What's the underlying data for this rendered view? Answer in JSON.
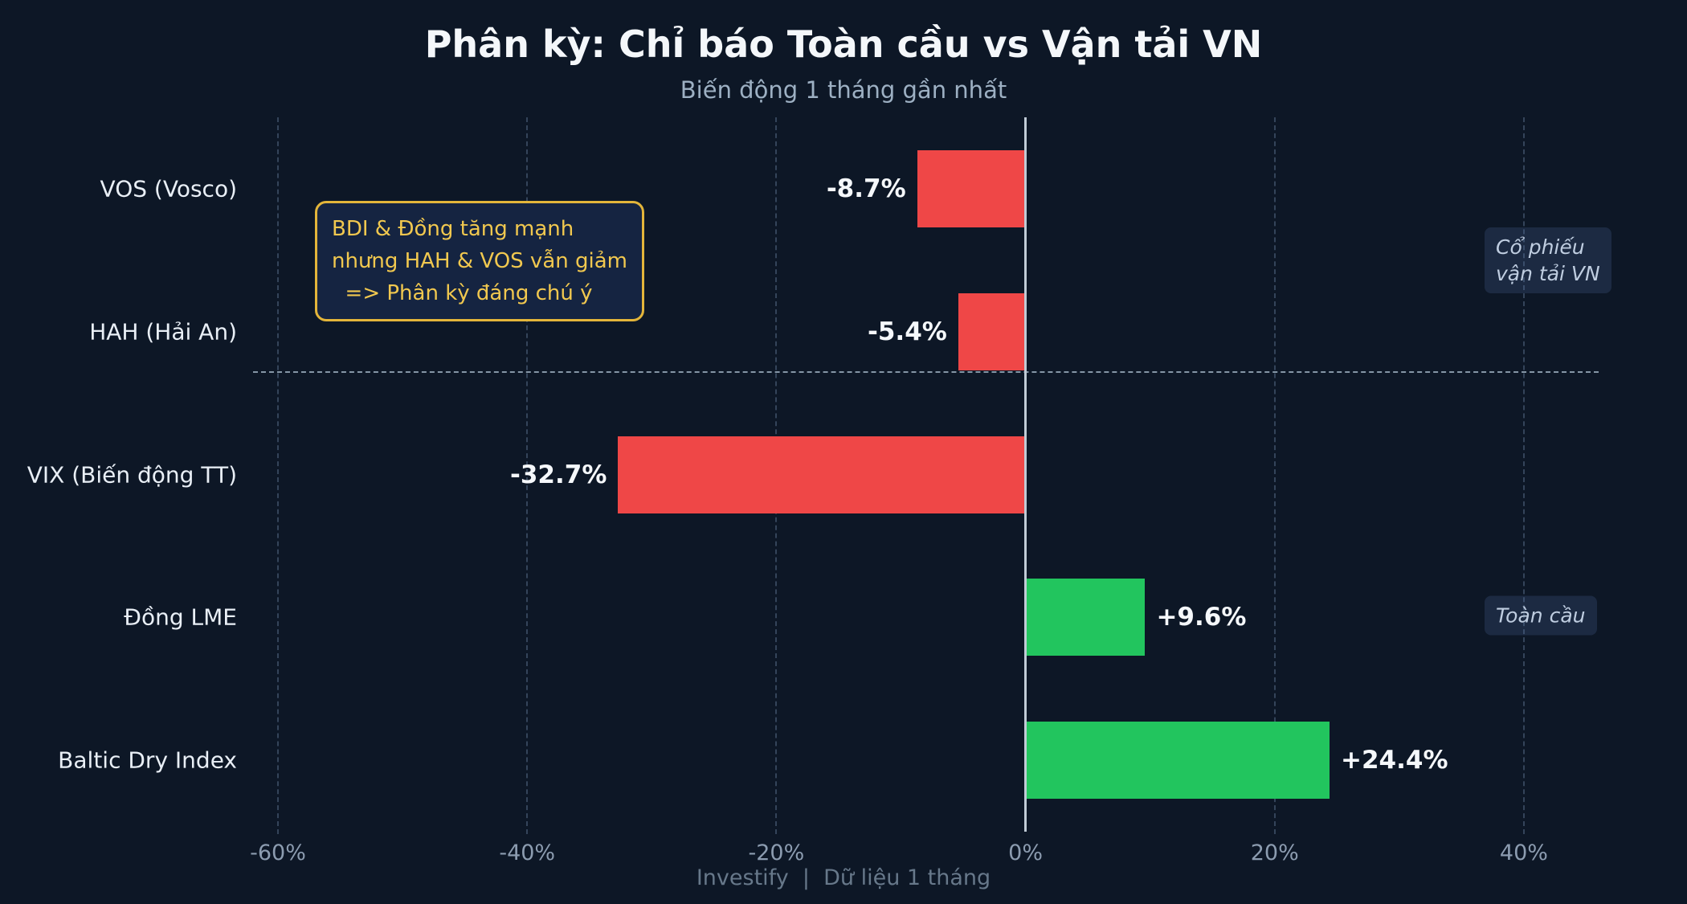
{
  "chart_data": {
    "type": "bar",
    "orientation": "horizontal",
    "title": "Phân kỳ: Chỉ báo Toàn cầu vs Vận tải VN",
    "subtitle": "Biến động 1 tháng gần nhất",
    "categories": [
      "VOS (Vosco)",
      "HAH (Hải An)",
      "VIX (Biến động TT)",
      "Đồng LME",
      "Baltic Dry Index"
    ],
    "values": [
      -8.7,
      -5.4,
      -32.7,
      9.6,
      24.4
    ],
    "value_labels": [
      "-8.7%",
      "-5.4%",
      "-32.7%",
      "+9.6%",
      "+24.4%"
    ],
    "xlim": [
      -62,
      46
    ],
    "xticks": [
      -60,
      -40,
      -20,
      0,
      20,
      40
    ],
    "xtick_labels": [
      "-60%",
      "-40%",
      "-20%",
      "0%",
      "20%",
      "40%"
    ],
    "negative_color": "#ef4747",
    "positive_color": "#22c55e",
    "grid": "vertical-dashed",
    "separator_between": [
      "HAH (Hải An)",
      "VIX (Biến động TT)"
    ]
  },
  "annotation": {
    "lines": [
      "BDI & Đồng tăng mạnh",
      "nhưng HAH & VOS vẫn giảm",
      "  => Phân kỳ đáng chú ý"
    ]
  },
  "group_labels": [
    {
      "lines": [
        "Cổ phiếu",
        "vận tải VN"
      ]
    },
    {
      "lines": [
        "Toàn cầu"
      ]
    }
  ],
  "footer": {
    "text": "Investify  |  Dữ liệu 1 tháng"
  }
}
